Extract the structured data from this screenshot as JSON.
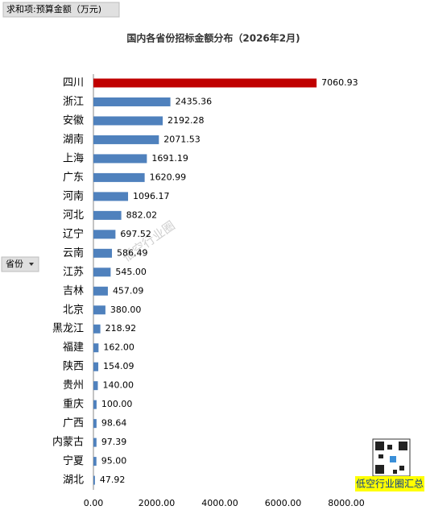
{
  "chart_data": {
    "type": "bar",
    "orientation": "horizontal",
    "field_button": "求和项:预算金额（万元)",
    "axis_button": "省份",
    "title": "国内各省份招标金额分布（2026年2月)",
    "categories": [
      "四川",
      "浙江",
      "安徽",
      "湖南",
      "上海",
      "广东",
      "河南",
      "河北",
      "辽宁",
      "云南",
      "江苏",
      "吉林",
      "北京",
      "黑龙江",
      "福建",
      "陕西",
      "贵州",
      "重庆",
      "广西",
      "内蒙古",
      "宁夏",
      "湖北"
    ],
    "values": [
      7060.93,
      2435.36,
      2192.28,
      2071.53,
      1691.19,
      1620.99,
      1096.17,
      882.02,
      697.52,
      586.49,
      545,
      457.09,
      380,
      218.92,
      162,
      154.09,
      140,
      100,
      98.64,
      97.39,
      95,
      47.92
    ],
    "value_labels": [
      "7060.93",
      "2435.36",
      "2192.28",
      "2071.53",
      "1691.19",
      "1620.99",
      "1096.17",
      "882.02",
      "697.52",
      "586.49",
      "545.00",
      "457.09",
      "380.00",
      "218.92",
      "162.00",
      "154.09",
      "140.00",
      "100.00",
      "98.64",
      "97.39",
      "95.00",
      "47.92"
    ],
    "colors": [
      "#c00000",
      "#4f81bd",
      "#4f81bd",
      "#4f81bd",
      "#4f81bd",
      "#4f81bd",
      "#4f81bd",
      "#4f81bd",
      "#4f81bd",
      "#4f81bd",
      "#4f81bd",
      "#4f81bd",
      "#4f81bd",
      "#4f81bd",
      "#4f81bd",
      "#4f81bd",
      "#4f81bd",
      "#4f81bd",
      "#4f81bd",
      "#4f81bd",
      "#4f81bd",
      "#4f81bd"
    ],
    "xlim": [
      0,
      8000
    ],
    "xticks": [
      {
        "value": 0,
        "label": "0.00"
      },
      {
        "value": 2000,
        "label": "2000.00"
      },
      {
        "value": 4000,
        "label": "4000.00"
      },
      {
        "value": 6000,
        "label": "6000.00"
      },
      {
        "value": 8000,
        "label": "8000.00"
      }
    ],
    "watermark": "低空行业圈",
    "badge": "低空行业圈汇总"
  }
}
